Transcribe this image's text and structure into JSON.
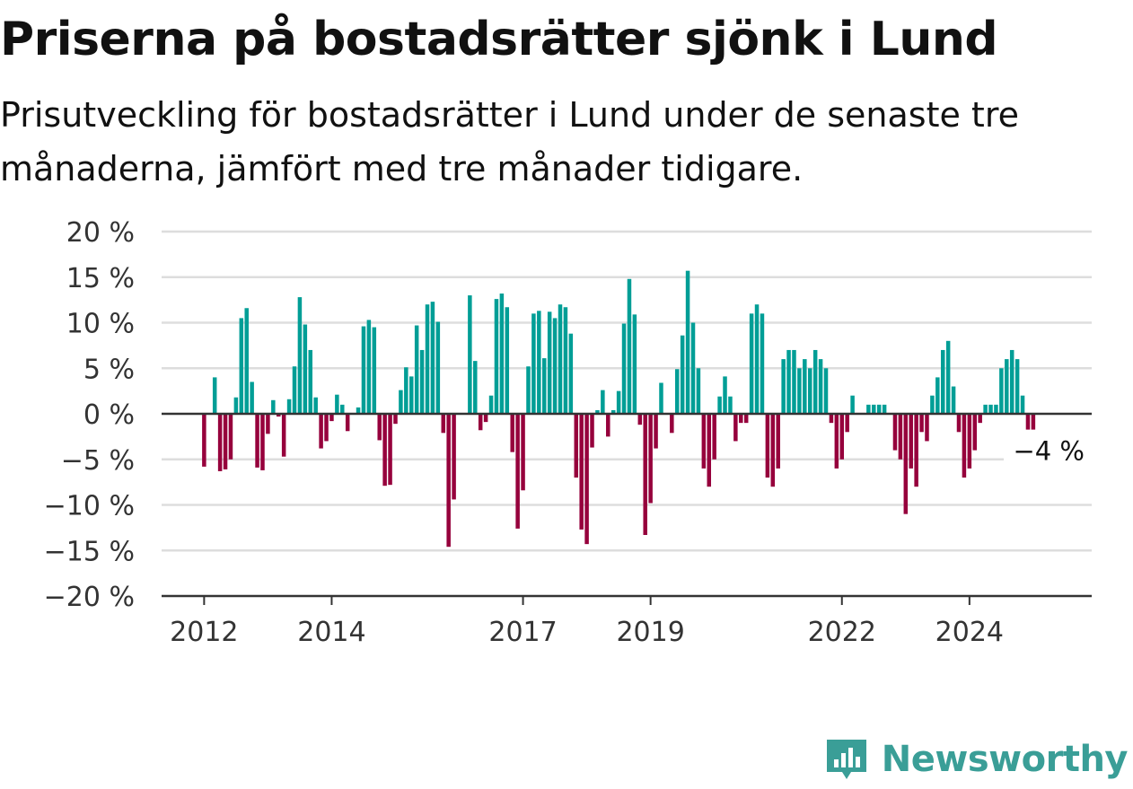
{
  "title": "Priserna på bostadsrätter sjönk i Lund",
  "subtitle": "Prisutveckling för bostadsrätter i Lund under de senaste tre månaderna, jämfört med tre månader tidigare.",
  "brand": {
    "name": "Newsworthy",
    "icon": "bar-chart-badge-icon",
    "color": "#3a9e97"
  },
  "colors": {
    "positive": "#009e96",
    "negative": "#96003c",
    "grid": "#dddddd",
    "axis": "#333333"
  },
  "chart_data": {
    "type": "bar",
    "ylim": [
      -20,
      20
    ],
    "yticks": [
      20,
      15,
      10,
      5,
      0,
      -5,
      -10,
      -15,
      -20
    ],
    "ytick_labels": [
      "20 %",
      "15 %",
      "10 %",
      "5 %",
      "0 %",
      "−5 %",
      "−10 %",
      "−15 %",
      "−20 %"
    ],
    "xticks": [
      {
        "label": "2012",
        "at": "2012-01"
      },
      {
        "label": "2014",
        "at": "2014-01"
      },
      {
        "label": "2017",
        "at": "2017-01"
      },
      {
        "label": "2019",
        "at": "2019-01"
      },
      {
        "label": "2022",
        "at": "2022-01"
      },
      {
        "label": "2024",
        "at": "2024-01"
      }
    ],
    "x_start": "2011-05",
    "x_end": "2025-12",
    "first_month": "2012-01",
    "values": [
      -5.8,
      0,
      4,
      -6.3,
      -6.1,
      -5,
      1.8,
      10.5,
      11.6,
      3.5,
      -5.9,
      -6.2,
      -2.2,
      1.5,
      -0.3,
      -4.7,
      1.6,
      5.2,
      12.8,
      9.8,
      7,
      1.8,
      -3.8,
      -3,
      -0.8,
      2.1,
      1,
      -1.9,
      0,
      0.7,
      9.6,
      10.3,
      9.5,
      -2.9,
      -7.9,
      -7.8,
      -1.1,
      2.6,
      5.1,
      4.1,
      9.7,
      7,
      12,
      12.3,
      10.1,
      -2.1,
      -14.6,
      -9.4,
      0,
      0,
      13,
      5.8,
      -1.8,
      -0.9,
      2,
      12.6,
      13.2,
      11.7,
      -4.2,
      -12.6,
      -8.4,
      5.2,
      11,
      11.3,
      6.1,
      11.2,
      10.5,
      12,
      11.7,
      8.8,
      -7,
      -12.7,
      -14.3,
      -3.7,
      0.4,
      2.6,
      -2.5,
      0.4,
      2.5,
      9.9,
      14.8,
      10.9,
      -1.2,
      -13.3,
      -9.8,
      -3.8,
      3.4,
      0,
      -2.1,
      4.9,
      8.6,
      15.7,
      10,
      5,
      -6,
      -8,
      -5,
      1.9,
      4.1,
      1.9,
      -3,
      -1,
      -1,
      11,
      12,
      11,
      -7,
      -8,
      -6,
      6,
      7,
      7,
      5,
      6,
      5,
      7,
      6,
      5,
      -1,
      -6,
      -5,
      -2,
      2,
      0,
      0,
      1,
      1,
      1,
      1,
      0,
      -4,
      -5,
      -11,
      -6,
      -8,
      -2,
      -3,
      2,
      4,
      7,
      8,
      3,
      -2,
      -7,
      -6,
      -4,
      -1,
      1,
      1,
      1,
      5,
      6,
      7,
      6,
      2,
      -2,
      -4
    ],
    "last_value_label": "−4 %"
  }
}
